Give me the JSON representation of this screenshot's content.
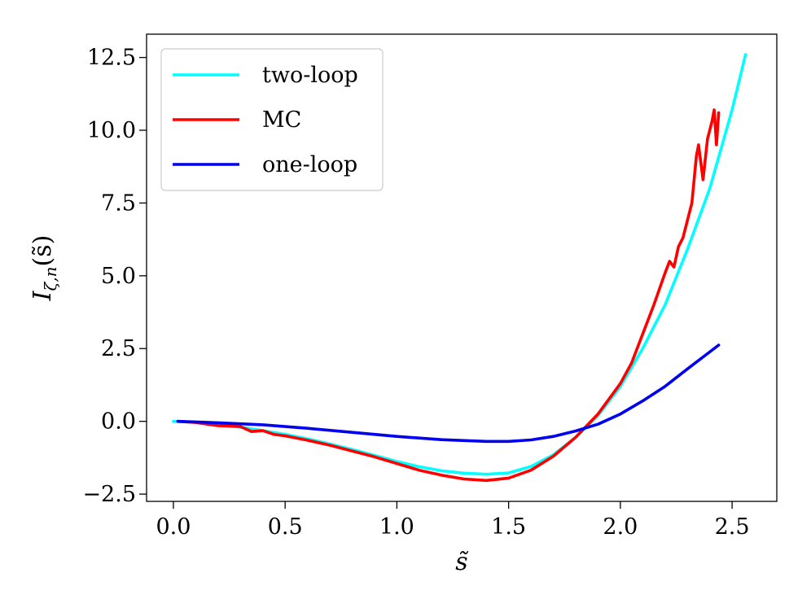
{
  "chart_data": {
    "type": "line",
    "title": "",
    "xlabel": "s̃",
    "ylabel": "I_{ζ,n}(s̃)",
    "ylabel_parts": {
      "base": "I",
      "sub": "ζ,n",
      "arg": "(s̃)"
    },
    "xlim": [
      -0.12,
      2.7
    ],
    "ylim": [
      -2.75,
      13.3
    ],
    "xticks": [
      0.0,
      0.5,
      1.0,
      1.5,
      2.0,
      2.5
    ],
    "xtick_labels": [
      "0.0",
      "0.5",
      "1.0",
      "1.5",
      "2.0",
      "2.5"
    ],
    "yticks": [
      -2.5,
      0.0,
      2.5,
      5.0,
      7.5,
      10.0,
      12.5
    ],
    "ytick_labels": [
      "−2.5",
      "0.0",
      "2.5",
      "5.0",
      "7.5",
      "10.0",
      "12.5"
    ],
    "grid": false,
    "legend_position": "top-left",
    "series": [
      {
        "name": "two-loop",
        "color": "#00ffff",
        "x": [
          0.0,
          0.1,
          0.2,
          0.3,
          0.4,
          0.5,
          0.6,
          0.7,
          0.8,
          0.9,
          1.0,
          1.1,
          1.2,
          1.3,
          1.4,
          1.5,
          1.6,
          1.7,
          1.8,
          1.9,
          2.0,
          2.1,
          2.2,
          2.3,
          2.4,
          2.5,
          2.56
        ],
        "y": [
          0.0,
          -0.03,
          -0.1,
          -0.2,
          -0.32,
          -0.45,
          -0.6,
          -0.78,
          -0.97,
          -1.17,
          -1.38,
          -1.56,
          -1.7,
          -1.78,
          -1.82,
          -1.77,
          -1.55,
          -1.15,
          -0.55,
          0.2,
          1.2,
          2.5,
          4.0,
          5.9,
          8.0,
          10.7,
          12.6
        ]
      },
      {
        "name": "MC",
        "color": "#ff0000",
        "x": [
          0.02,
          0.1,
          0.2,
          0.3,
          0.35,
          0.4,
          0.45,
          0.5,
          0.6,
          0.7,
          0.8,
          0.9,
          1.0,
          1.1,
          1.2,
          1.3,
          1.4,
          1.5,
          1.6,
          1.7,
          1.8,
          1.9,
          2.0,
          2.05,
          2.1,
          2.15,
          2.2,
          2.22,
          2.24,
          2.26,
          2.28,
          2.3,
          2.32,
          2.34,
          2.35,
          2.37,
          2.39,
          2.41,
          2.42,
          2.43,
          2.44
        ],
        "y": [
          0.0,
          -0.04,
          -0.15,
          -0.18,
          -0.35,
          -0.32,
          -0.45,
          -0.5,
          -0.65,
          -0.82,
          -1.02,
          -1.22,
          -1.45,
          -1.68,
          -1.85,
          -1.98,
          -2.03,
          -1.95,
          -1.68,
          -1.2,
          -0.55,
          0.25,
          1.3,
          2.0,
          3.0,
          4.0,
          5.1,
          5.5,
          5.3,
          6.0,
          6.3,
          6.9,
          7.5,
          9.1,
          9.5,
          8.3,
          9.7,
          10.3,
          10.7,
          9.5,
          10.6
        ]
      },
      {
        "name": "one-loop",
        "color": "#0000ee",
        "x": [
          0.02,
          0.2,
          0.4,
          0.6,
          0.8,
          1.0,
          1.2,
          1.4,
          1.5,
          1.6,
          1.7,
          1.8,
          1.9,
          2.0,
          2.1,
          2.2,
          2.3,
          2.44
        ],
        "y": [
          0.0,
          -0.05,
          -0.12,
          -0.24,
          -0.38,
          -0.52,
          -0.63,
          -0.69,
          -0.69,
          -0.64,
          -0.52,
          -0.33,
          -0.1,
          0.25,
          0.7,
          1.2,
          1.8,
          2.62
        ]
      }
    ]
  }
}
